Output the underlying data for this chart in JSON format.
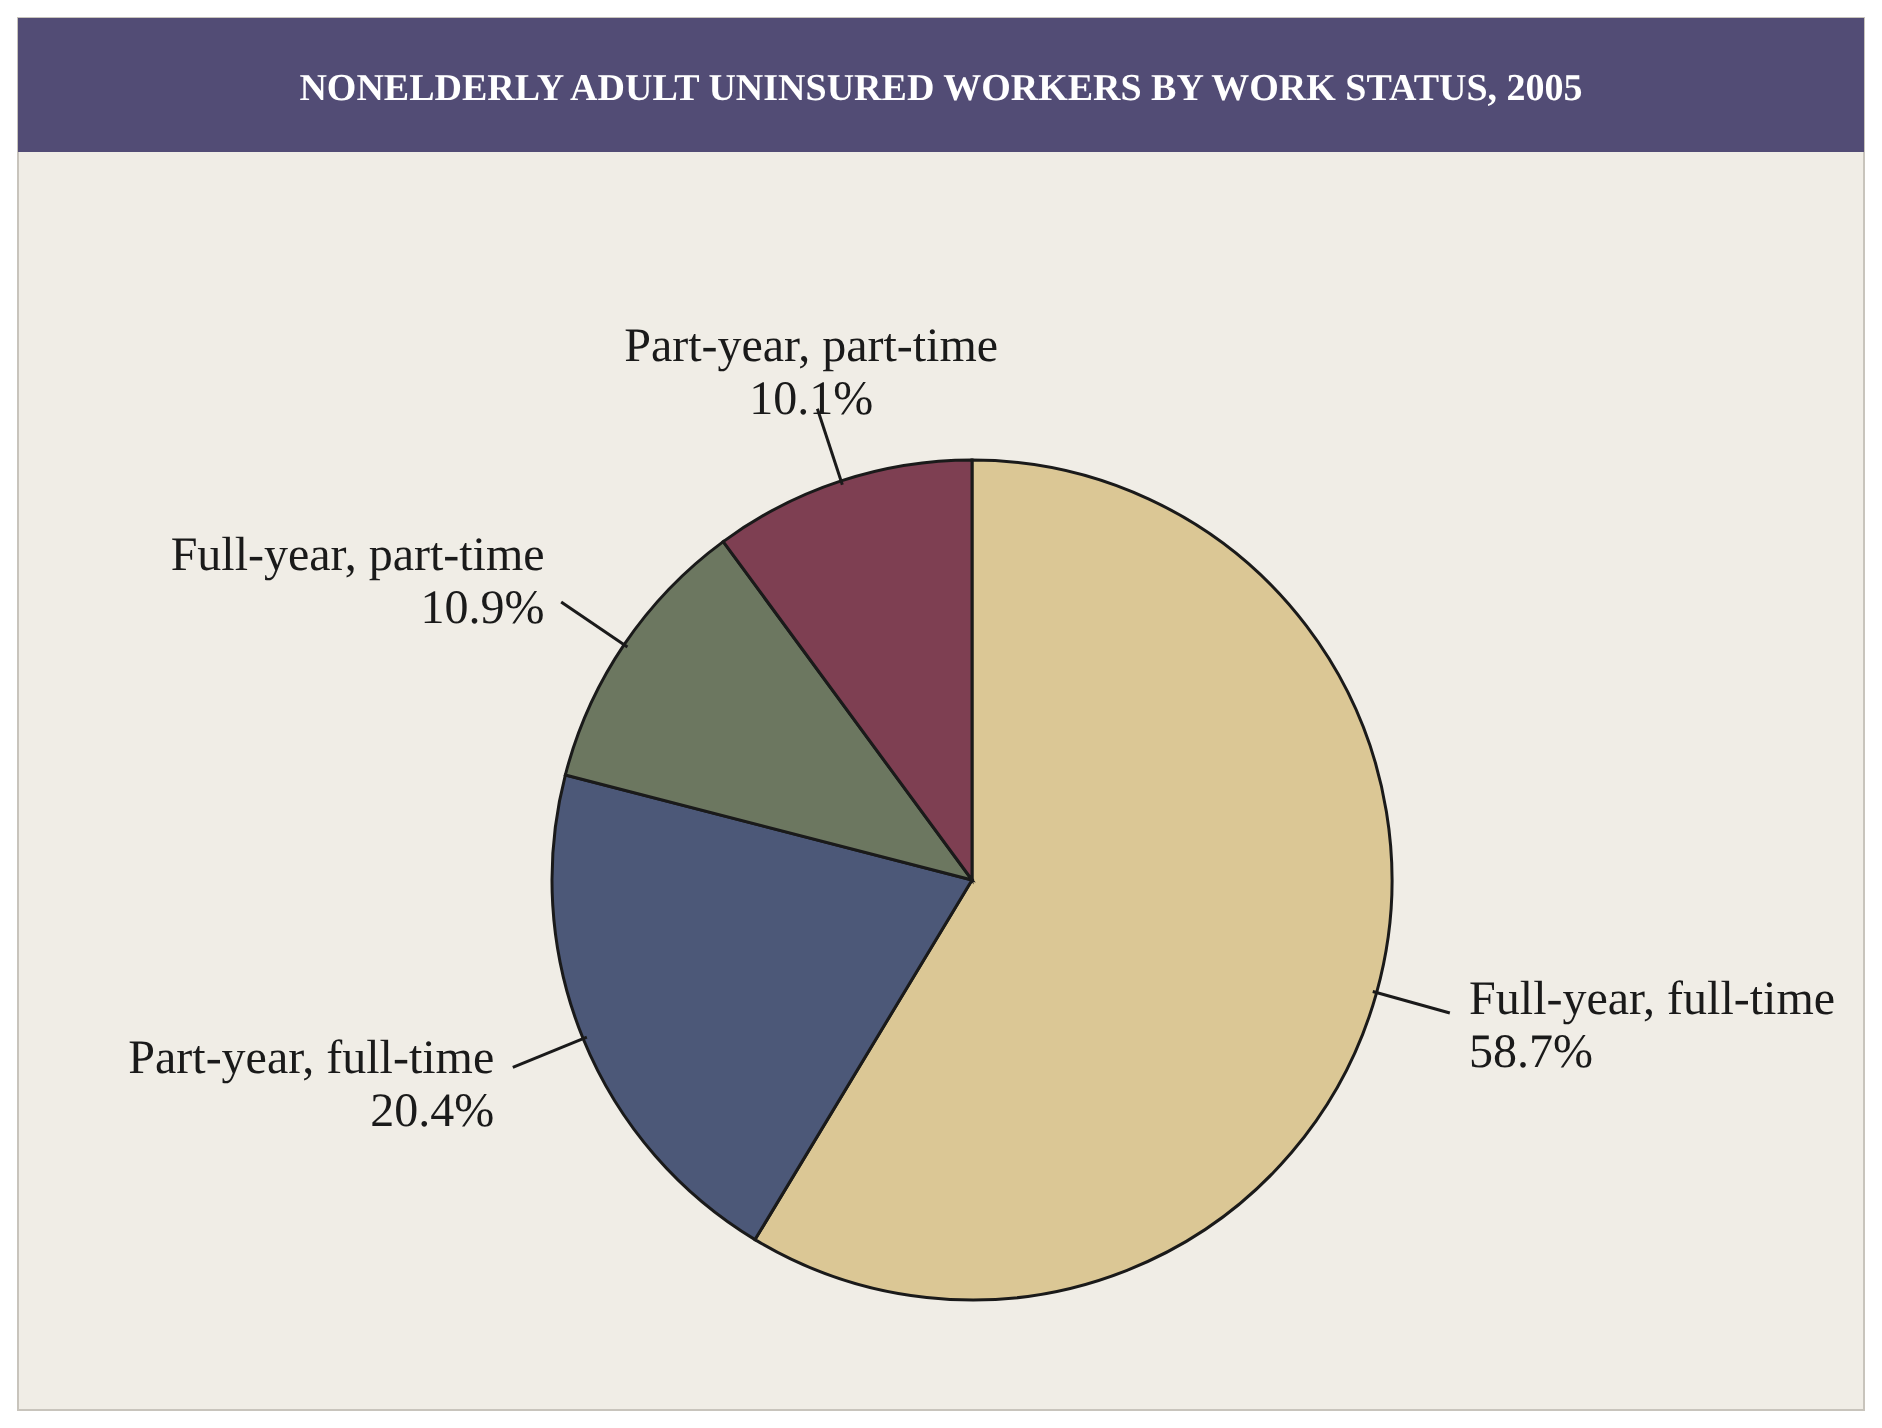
{
  "chart_data": {
    "type": "pie",
    "title": "NONELDERLY ADULT UNINSURED WORKERS BY WORK STATUS, 2005",
    "categories": [
      "Full-year, full-time",
      "Part-year, full-time",
      "Full-year, part-time",
      "Part-year, part-time"
    ],
    "values": [
      58.7,
      20.4,
      10.9,
      10.1
    ],
    "colors": [
      "#dbc795",
      "#4c5878",
      "#6c7760",
      "#7e3f52"
    ],
    "value_labels": [
      "58.7%",
      "20.4%",
      "10.9%",
      "10.1%"
    ]
  }
}
